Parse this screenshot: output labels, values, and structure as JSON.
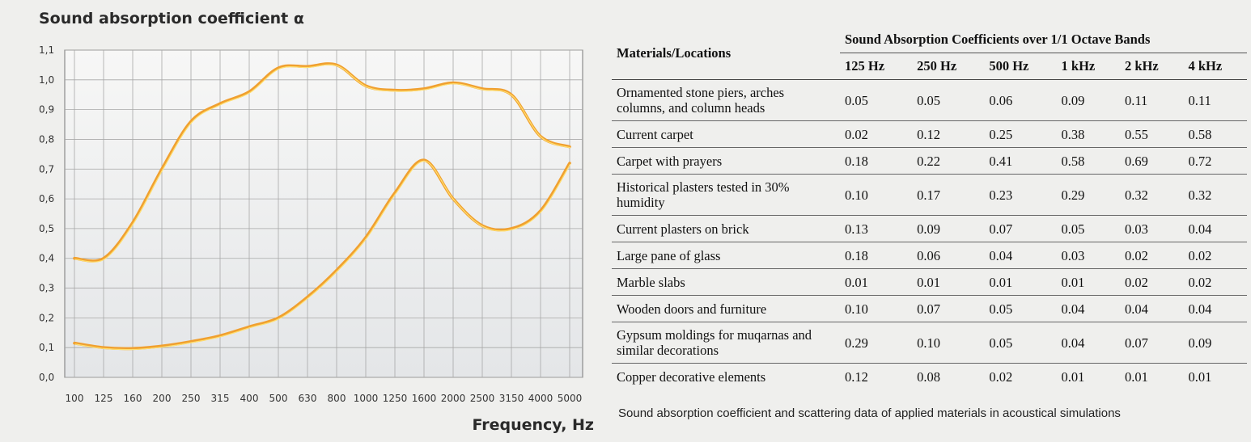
{
  "chart_data": {
    "type": "line",
    "title": "Sound absorption coefficient α",
    "xlabel": "Frequency, Hz",
    "ylabel": "",
    "x_scale": "log-octave-thirds",
    "categories": [
      "100",
      "125",
      "160",
      "200",
      "250",
      "315",
      "400",
      "500",
      "630",
      "800",
      "1000",
      "1250",
      "1600",
      "2000",
      "2500",
      "3150",
      "4000",
      "5000"
    ],
    "ylim": [
      0.0,
      1.1
    ],
    "yticks": [
      "0,0",
      "0,1",
      "0,2",
      "0,3",
      "0,4",
      "0,5",
      "0,6",
      "0,7",
      "0,8",
      "0,9",
      "1,0",
      "1,1"
    ],
    "grid": true,
    "series": [
      {
        "color": "#f0a030",
        "highlight": "#ffe070",
        "values": [
          0.4,
          0.4,
          0.52,
          0.7,
          0.86,
          0.92,
          0.96,
          1.04,
          1.045,
          1.05,
          0.98,
          0.965,
          0.97,
          0.99,
          0.97,
          0.95,
          0.81,
          0.775
        ]
      },
      {
        "color": "#f0a030",
        "highlight": "#ffe070",
        "values": [
          0.115,
          0.1,
          0.097,
          0.105,
          0.12,
          0.14,
          0.17,
          0.2,
          0.27,
          0.36,
          0.47,
          0.62,
          0.73,
          0.6,
          0.51,
          0.5,
          0.56,
          0.72
        ]
      }
    ]
  },
  "table": {
    "material_header": "Materials/Locations",
    "group_header": "Sound Absorption Coefficients over 1/1 Octave Bands",
    "bands": [
      "125 Hz",
      "250 Hz",
      "500 Hz",
      "1 kHz",
      "2 kHz",
      "4 kHz"
    ],
    "rows": [
      {
        "name": "Ornamented stone piers, arches columns, and column heads",
        "values": [
          "0.05",
          "0.05",
          "0.06",
          "0.09",
          "0.11",
          "0.11"
        ]
      },
      {
        "name": "Current carpet",
        "values": [
          "0.02",
          "0.12",
          "0.25",
          "0.38",
          "0.55",
          "0.58"
        ]
      },
      {
        "name": "Carpet with prayers",
        "values": [
          "0.18",
          "0.22",
          "0.41",
          "0.58",
          "0.69",
          "0.72"
        ]
      },
      {
        "name": "Historical plasters tested in 30% humidity",
        "values": [
          "0.10",
          "0.17",
          "0.23",
          "0.29",
          "0.32",
          "0.32"
        ]
      },
      {
        "name": "Current plasters on brick",
        "values": [
          "0.13",
          "0.09",
          "0.07",
          "0.05",
          "0.03",
          "0.04"
        ]
      },
      {
        "name": "Large pane of glass",
        "values": [
          "0.18",
          "0.06",
          "0.04",
          "0.03",
          "0.02",
          "0.02"
        ]
      },
      {
        "name": "Marble slabs",
        "values": [
          "0.01",
          "0.01",
          "0.01",
          "0.01",
          "0.02",
          "0.02"
        ]
      },
      {
        "name": "Wooden doors and furniture",
        "values": [
          "0.10",
          "0.07",
          "0.05",
          "0.04",
          "0.04",
          "0.04"
        ]
      },
      {
        "name": "Gypsum moldings for muqarnas and similar decorations",
        "values": [
          "0.29",
          "0.10",
          "0.05",
          "0.04",
          "0.07",
          "0.09"
        ]
      },
      {
        "name": "Copper decorative elements",
        "values": [
          "0.12",
          "0.08",
          "0.02",
          "0.01",
          "0.01",
          "0.01"
        ]
      }
    ],
    "caption": "Sound absorption coefficient and scattering data of applied materials in acoustical simulations"
  }
}
